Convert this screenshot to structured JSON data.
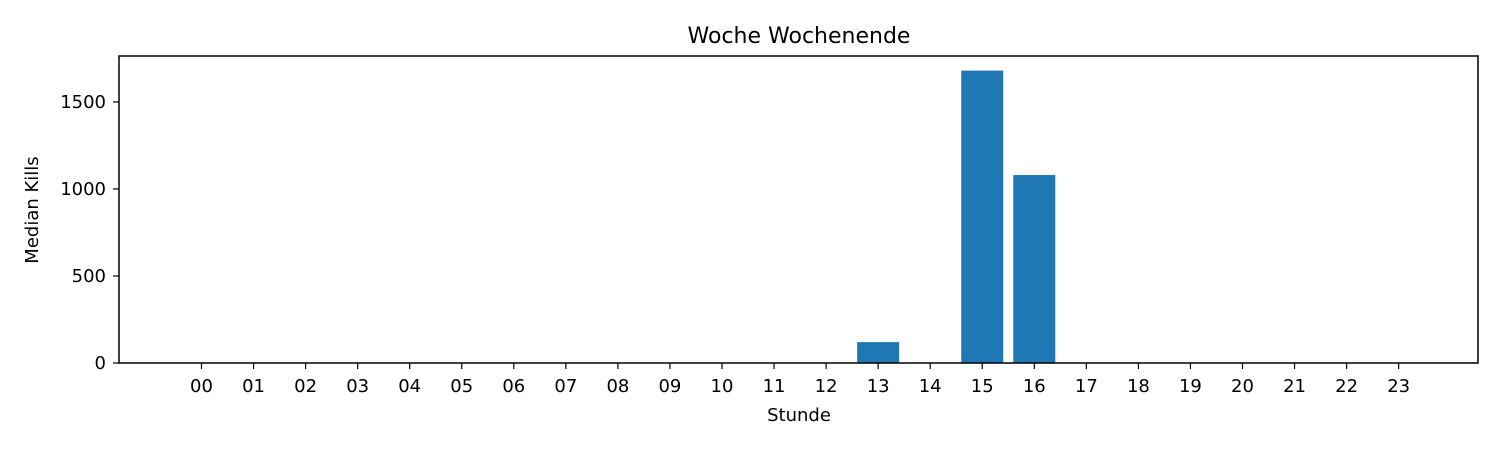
{
  "chart_data": {
    "type": "bar",
    "title": "Woche Wochenende",
    "xlabel": "Stunde",
    "ylabel": "Median Kills",
    "categories": [
      "00",
      "01",
      "02",
      "03",
      "04",
      "05",
      "06",
      "07",
      "08",
      "09",
      "10",
      "11",
      "12",
      "13",
      "14",
      "15",
      "16",
      "17",
      "18",
      "19",
      "20",
      "21",
      "22",
      "23"
    ],
    "values": [
      0,
      0,
      0,
      0,
      0,
      0,
      0,
      0,
      0,
      0,
      0,
      0,
      0,
      120,
      0,
      1680,
      1080,
      0,
      0,
      0,
      0,
      0,
      0,
      0
    ],
    "ylim": [
      0,
      1764
    ],
    "yticks": [
      0,
      500,
      1000,
      1500
    ],
    "grid": false,
    "legend": "none",
    "bar_color": "#1f77b4"
  }
}
